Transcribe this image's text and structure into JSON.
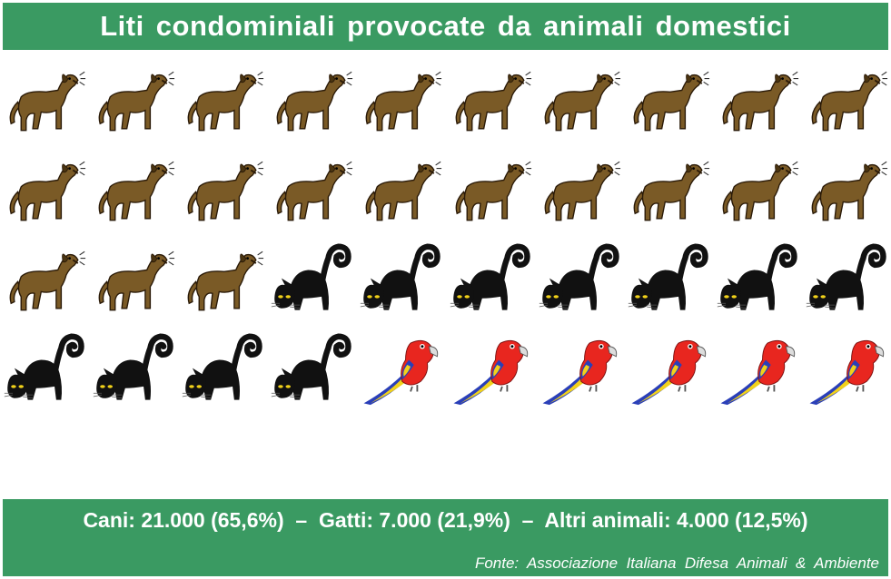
{
  "title": "Liti condominiali provocate da animali domestici",
  "summary": "Cani: 21.000 (65,6%)  –  Gatti: 7.000 (21,9%)  –  Altri animali: 4.000 (12,5%)",
  "source": "Fonte:  Associazione  Italiana  Difesa  Animali  &  Ambiente",
  "colors": {
    "banner": "#3a9a62",
    "dog": "#7a5a26",
    "cat": "#111111",
    "parrot": "#e8261f"
  },
  "chart_data": {
    "type": "pictogram",
    "title": "Liti condominiali provocate da animali domestici",
    "categories": [
      "Cani",
      "Gatti",
      "Altri animali"
    ],
    "values": [
      21000,
      7000,
      4000
    ],
    "percentages": [
      65.6,
      21.9,
      12.5
    ],
    "icons": [
      "dog-icon",
      "cat-icon",
      "parrot-icon"
    ],
    "icon_counts": [
      23,
      11,
      6
    ],
    "grid": {
      "rows": 5,
      "cols": 10
    }
  }
}
